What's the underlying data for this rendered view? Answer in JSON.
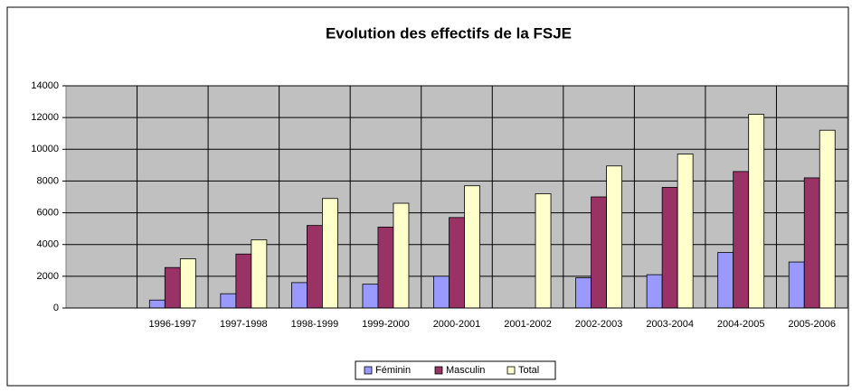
{
  "chart_data": {
    "type": "bar",
    "title": "Evolution des effectifs de la FSJE",
    "categories": [
      null,
      "1996-1997",
      "1997-1998",
      "1998-1999",
      "1999-2000",
      "2000-2001",
      "2001-2002",
      "2002-2003",
      "2003-2004",
      "2004-2005",
      "2005-2006"
    ],
    "series": [
      {
        "name": "Féminin",
        "color": "#9999ff",
        "values": [
          null,
          500,
          900,
          1600,
          1500,
          2000,
          null,
          1900,
          2100,
          3500,
          2900
        ]
      },
      {
        "name": "Masculin",
        "color": "#993366",
        "values": [
          null,
          2550,
          3400,
          5200,
          5100,
          5700,
          null,
          7000,
          7600,
          8600,
          8200
        ]
      },
      {
        "name": "Total",
        "color": "#ffffcc",
        "values": [
          null,
          3100,
          4300,
          6900,
          6600,
          7700,
          7200,
          8950,
          9700,
          12200,
          11200
        ]
      }
    ],
    "ylim": [
      0,
      14000
    ],
    "yticks": [
      0,
      2000,
      4000,
      6000,
      8000,
      10000,
      12000,
      14000
    ],
    "grid": true,
    "legend": "bottom",
    "plot_background": "#c0c0c0"
  }
}
